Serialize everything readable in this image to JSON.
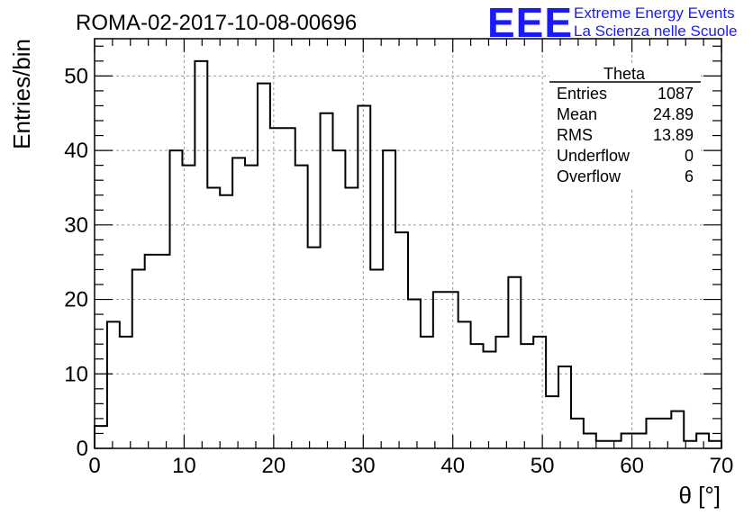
{
  "chart_data": {
    "type": "histogram",
    "title": "ROMA-02-2017-10-08-00696",
    "xlabel": "θ [°]",
    "ylabel": "Entries/bin",
    "xlim": [
      0,
      70
    ],
    "ylim": [
      0,
      55
    ],
    "x_ticks": [
      0,
      10,
      20,
      30,
      40,
      50,
      60,
      70
    ],
    "y_ticks": [
      0,
      10,
      20,
      30,
      40,
      50
    ],
    "grid": true,
    "bin_width": 1.4,
    "values": [
      3,
      17,
      15,
      24,
      26,
      26,
      40,
      38,
      52,
      35,
      34,
      39,
      38,
      49,
      43,
      43,
      38,
      27,
      45,
      40,
      35,
      46,
      24,
      40,
      29,
      20,
      15,
      21,
      21,
      17,
      14,
      13,
      15,
      23,
      14,
      15,
      7,
      11,
      4,
      2,
      1,
      1,
      2,
      2,
      4,
      4,
      5,
      1,
      2,
      1
    ]
  },
  "stats_box": {
    "title": "Theta",
    "rows": [
      {
        "label": "Entries",
        "value": "1087"
      },
      {
        "label": "Mean",
        "value": "24.89"
      },
      {
        "label": "RMS",
        "value": "13.89"
      },
      {
        "label": "Underflow",
        "value": "0"
      },
      {
        "label": "Overflow",
        "value": "6"
      }
    ]
  },
  "logo": {
    "mark": "EEE",
    "line1": "Extreme Energy Events",
    "line2": "La Scienza nelle Scuole"
  }
}
